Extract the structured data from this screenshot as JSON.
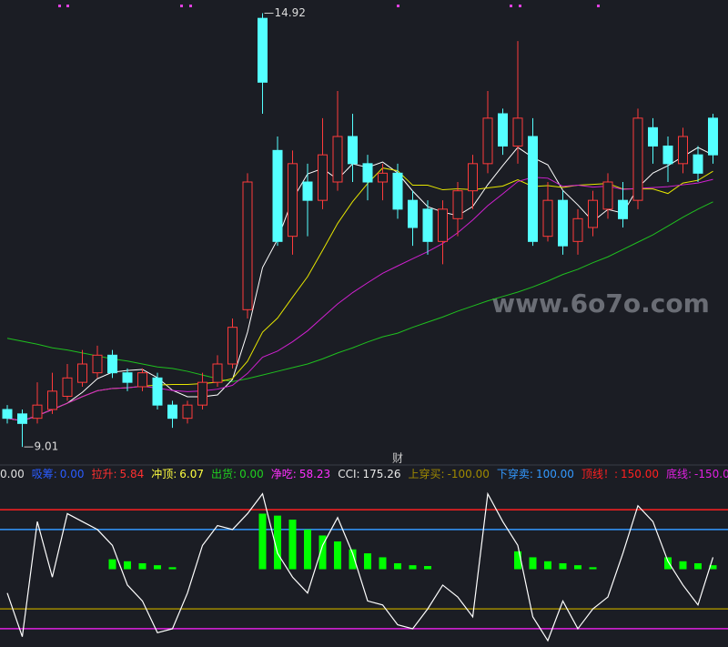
{
  "chart_data": [
    {
      "type": "candlestick",
      "open": [
        9.52,
        9.46,
        9.4,
        9.52,
        9.7,
        9.89,
        10.02,
        10.26,
        10.02,
        9.83,
        9.95,
        9.58,
        9.4,
        9.58,
        9.89,
        10.14,
        10.88,
        14.85,
        13.05,
        11.88,
        12.62,
        12.37,
        12.62,
        13.24,
        12.87,
        12.62,
        12.74,
        12.37,
        12.25,
        11.81,
        12.12,
        12.5,
        12.87,
        13.55,
        13.11,
        13.24,
        11.88,
        12.37,
        11.81,
        12.0,
        12.25,
        12.37,
        12.37,
        13.36,
        13.11,
        12.87,
        12.99,
        13.49
      ],
      "close": [
        9.4,
        9.33,
        9.58,
        9.77,
        9.95,
        10.14,
        10.26,
        10.02,
        9.89,
        10.02,
        9.58,
        9.4,
        9.58,
        9.89,
        10.14,
        10.64,
        12.62,
        13.98,
        11.81,
        12.87,
        12.37,
        12.99,
        13.24,
        12.87,
        12.62,
        12.74,
        12.25,
        12.0,
        11.81,
        12.25,
        12.5,
        12.87,
        13.49,
        13.11,
        13.49,
        11.81,
        12.37,
        11.75,
        12.12,
        12.37,
        12.62,
        12.12,
        13.49,
        13.11,
        12.87,
        13.24,
        12.74,
        12.99
      ],
      "high": [
        9.58,
        9.52,
        9.89,
        10.02,
        10.14,
        10.33,
        10.39,
        10.33,
        10.08,
        10.08,
        10.02,
        9.64,
        9.64,
        10.02,
        10.26,
        10.76,
        12.74,
        14.92,
        13.24,
        13.05,
        12.87,
        13.49,
        13.86,
        13.55,
        12.99,
        12.87,
        12.87,
        12.5,
        12.37,
        12.37,
        12.62,
        12.99,
        13.86,
        13.62,
        14.54,
        13.49,
        12.62,
        12.5,
        12.25,
        12.5,
        12.74,
        12.62,
        13.62,
        13.49,
        13.24,
        13.36,
        13.11,
        13.55
      ],
      "low": [
        9.33,
        9.01,
        9.33,
        9.46,
        9.64,
        9.83,
        9.95,
        9.95,
        9.77,
        9.77,
        9.52,
        9.27,
        9.33,
        9.52,
        9.83,
        10.08,
        10.76,
        13.55,
        11.75,
        11.63,
        11.88,
        12.25,
        12.5,
        12.62,
        12.37,
        12.37,
        12.12,
        11.75,
        11.63,
        11.5,
        11.88,
        12.25,
        12.74,
        12.99,
        12.87,
        11.75,
        11.81,
        11.63,
        11.63,
        11.88,
        12.12,
        12.0,
        12.25,
        12.87,
        12.62,
        12.74,
        12.62,
        12.87
      ],
      "up_color": "#ff3b3b",
      "down_color": "#54ffff",
      "ma_colors": [
        "#ffffff",
        "#e6e600",
        "#d020d0"
      ],
      "series": [
        {
          "color": "#1fc01f",
          "values": [
            10.49,
            10.45,
            10.41,
            10.36,
            10.33,
            10.29,
            10.25,
            10.21,
            10.18,
            10.14,
            10.1,
            10.08,
            10.04,
            9.99,
            9.94,
            9.9,
            9.94,
            9.99,
            10.04,
            10.09,
            10.14,
            10.21,
            10.29,
            10.36,
            10.44,
            10.51,
            10.56,
            10.64,
            10.71,
            10.78,
            10.86,
            10.93,
            11.0,
            11.06,
            11.12,
            11.19,
            11.27,
            11.36,
            11.43,
            11.52,
            11.6,
            11.7,
            11.8,
            11.9,
            12.02,
            12.14,
            12.25,
            12.35
          ]
        }
      ],
      "ylim": [
        8.9,
        15.1
      ],
      "annotations": [
        "财"
      ]
    },
    {
      "type": "indicator",
      "readout": [
        {
          "label": "0.00",
          "color": "#e0e0e0"
        },
        {
          "name": "吸筹:",
          "label": "0.00",
          "color": "#2a5cff"
        },
        {
          "name": "拉升:",
          "label": "5.84",
          "color": "#ff3030"
        },
        {
          "name": "冲顶:",
          "label": "6.07",
          "color": "#ffff40"
        },
        {
          "name": "出货:",
          "label": "0.00",
          "color": "#20d020"
        },
        {
          "name": "净吃:",
          "label": "58.23",
          "color": "#ff30ff"
        },
        {
          "name": "CCI:",
          "label": "175.26",
          "color": "#e8e8e8"
        },
        {
          "name": "上穿买:",
          "label": "-100.00",
          "color": "#a08a00"
        },
        {
          "name": "下穿卖:",
          "label": "100.00",
          "color": "#3399ff"
        },
        {
          "name": "顶线！:",
          "label": "150.00",
          "color": "#ff2020"
        },
        {
          "name": "底线:",
          "label": "-150.00",
          "color": "#e020e0"
        }
      ],
      "thresholds": [
        {
          "value": -100,
          "color": "#a08a00",
          "readout": 7
        },
        {
          "value": 100,
          "color": "#3399ff",
          "readout": 8
        },
        {
          "value": 150,
          "color": "#ff2020",
          "readout": 9
        },
        {
          "value": -150,
          "color": "#e020e0",
          "readout": 10
        }
      ],
      "series": [
        {
          "type": "bar",
          "color": "#00ff00",
          "values": [
            0,
            0,
            0,
            0,
            0,
            0,
            0,
            25,
            20,
            15,
            10,
            5,
            0,
            0,
            0,
            0,
            0,
            140,
            135,
            125,
            100,
            85,
            70,
            50,
            40,
            30,
            15,
            10,
            8,
            0,
            0,
            0,
            0,
            0,
            45,
            30,
            20,
            15,
            10,
            5,
            0,
            0,
            0,
            0,
            30,
            20,
            15,
            10
          ]
        },
        {
          "type": "line",
          "color": "#ffffff",
          "values": [
            -60,
            -170,
            120,
            -20,
            140,
            120,
            100,
            60,
            -40,
            -80,
            -160,
            -150,
            -60,
            60,
            110,
            100,
            140,
            190,
            40,
            -20,
            -60,
            60,
            130,
            40,
            -80,
            -90,
            -140,
            -150,
            -100,
            -40,
            -70,
            -120,
            190,
            120,
            60,
            -120,
            -180,
            -80,
            -150,
            -100,
            -70,
            40,
            160,
            120,
            20,
            -40,
            -90,
            30
          ]
        }
      ],
      "ylim": [
        -196,
        219
      ]
    }
  ],
  "watermark": "www.6o7o.com"
}
